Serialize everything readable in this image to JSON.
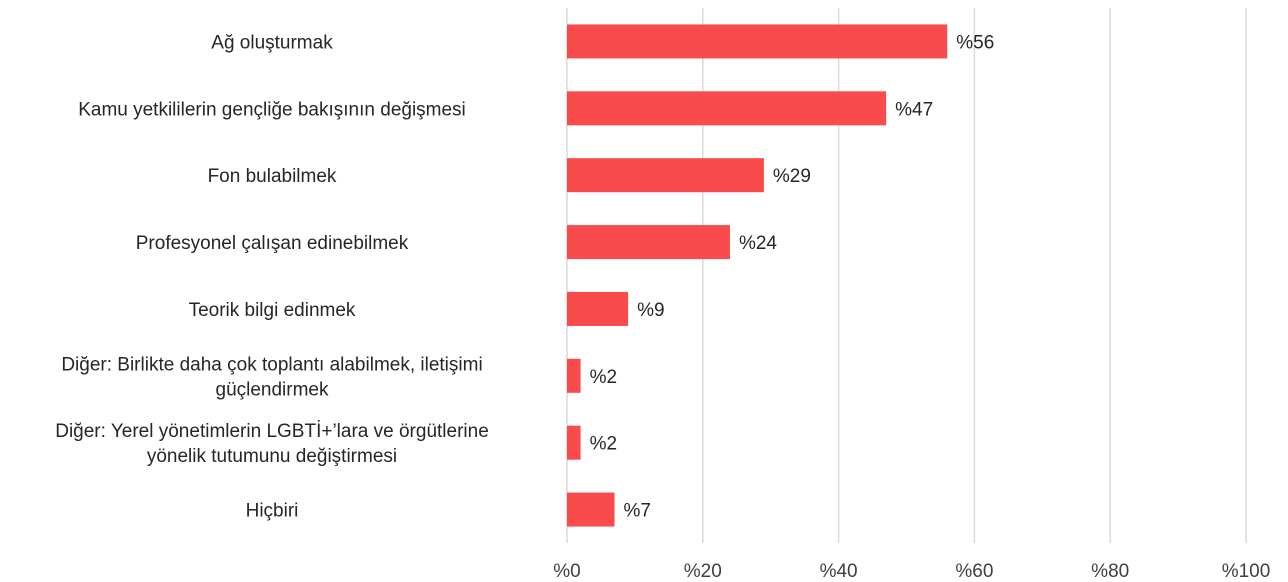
{
  "chart_data": {
    "type": "bar",
    "orientation": "horizontal",
    "categories": [
      [
        "Ağ oluşturmak"
      ],
      [
        "Kamu yetkililerin gençliğe bakışının değişmesi"
      ],
      [
        "Fon bulabilmek"
      ],
      [
        "Profesyonel çalışan edinebilmek"
      ],
      [
        "Teorik bilgi edinmek"
      ],
      [
        "Diğer: Birlikte daha çok toplantı alabilmek, iletişimi",
        "güçlendirmek"
      ],
      [
        "Diğer: Yerel yönetimlerin LGBTİ+’lara ve örgütlerine",
        "yönelik tutumunu değiştirmesi"
      ],
      [
        "Hiçbiri"
      ]
    ],
    "values": [
      56,
      47,
      29,
      24,
      9,
      2,
      2,
      7
    ],
    "value_labels": [
      "%56",
      "%47",
      "%29",
      "%24",
      "%9",
      "%2",
      "%2",
      "%7"
    ],
    "x_ticks": [
      0,
      20,
      40,
      60,
      80,
      100
    ],
    "x_tick_labels": [
      "%0",
      "%20",
      "%40",
      "%60",
      "%80",
      "%100"
    ],
    "xlim": [
      0,
      100
    ],
    "title": "",
    "xlabel": "",
    "ylabel": "",
    "grid": "vertical",
    "legend": "none",
    "bar_color": "#f94b4b",
    "grid_color": "#d9d9d9"
  }
}
